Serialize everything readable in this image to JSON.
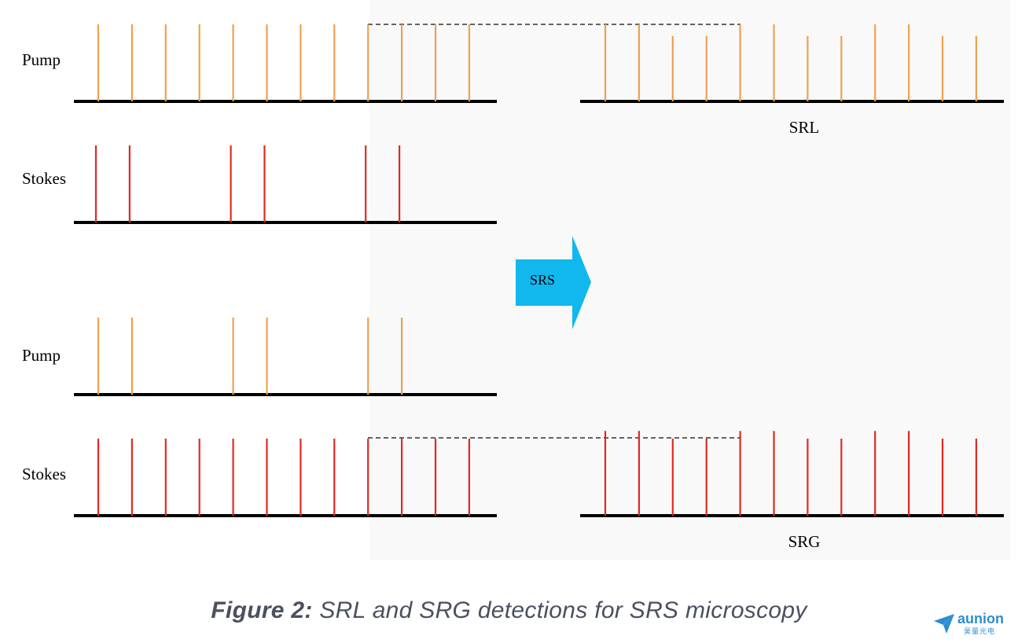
{
  "labels": {
    "pump_top": "Pump",
    "stokes_top": "Stokes",
    "pump_bottom": "Pump",
    "stokes_bottom": "Stokes",
    "srl": "SRL",
    "srg": "SRG",
    "arrow": "SRS"
  },
  "caption": {
    "figure": "Figure 2:",
    "text": " SRL and SRG detections for SRS microscopy"
  },
  "logo": {
    "brand": "aunion",
    "sub": "昊量光电"
  },
  "colors": {
    "pump": "#f0a050",
    "stokes": "#e02a20",
    "axis": "#000000",
    "arrow": "#10b8ee",
    "caption": "#4b5060"
  },
  "trains": {
    "pump_top": [
      1,
      1,
      1,
      1,
      1,
      1,
      1,
      1,
      1,
      1,
      1,
      1
    ],
    "stokes_top": [
      1,
      1,
      0,
      0,
      1,
      1,
      0,
      0,
      1,
      1,
      0,
      0
    ],
    "pump_bottom": [
      1,
      1,
      0,
      0,
      1,
      1,
      0,
      0,
      1,
      1,
      0,
      0
    ],
    "stokes_bottom": [
      1,
      1,
      1,
      1,
      1,
      1,
      1,
      1,
      1,
      1,
      1,
      1
    ],
    "srl_output": [
      1,
      1,
      0.85,
      0.85,
      1,
      1,
      0.85,
      0.85,
      1,
      1,
      0.85,
      0.85
    ],
    "srg_output": [
      1.1,
      1.1,
      1,
      1,
      1.1,
      1.1,
      1,
      1,
      1.1,
      1.1,
      1,
      1
    ]
  }
}
